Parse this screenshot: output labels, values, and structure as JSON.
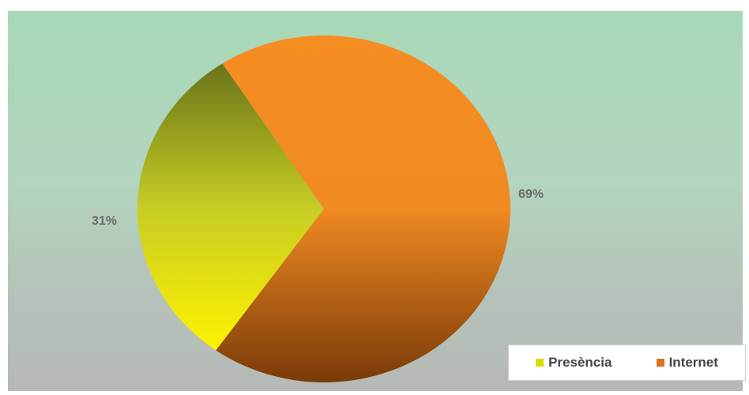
{
  "chart_data": {
    "type": "pie",
    "categories": [
      "Presència",
      "Internet"
    ],
    "values": [
      31,
      69
    ],
    "data_labels": [
      "31%",
      "69%"
    ],
    "colors": [
      "#e6e10e",
      "#f08a22"
    ],
    "legend_position": "bottom-right"
  },
  "legend": {
    "items": [
      {
        "label": "Presència",
        "color": "#dcdc00"
      },
      {
        "label": "Internet",
        "color": "#d9731b"
      }
    ]
  }
}
